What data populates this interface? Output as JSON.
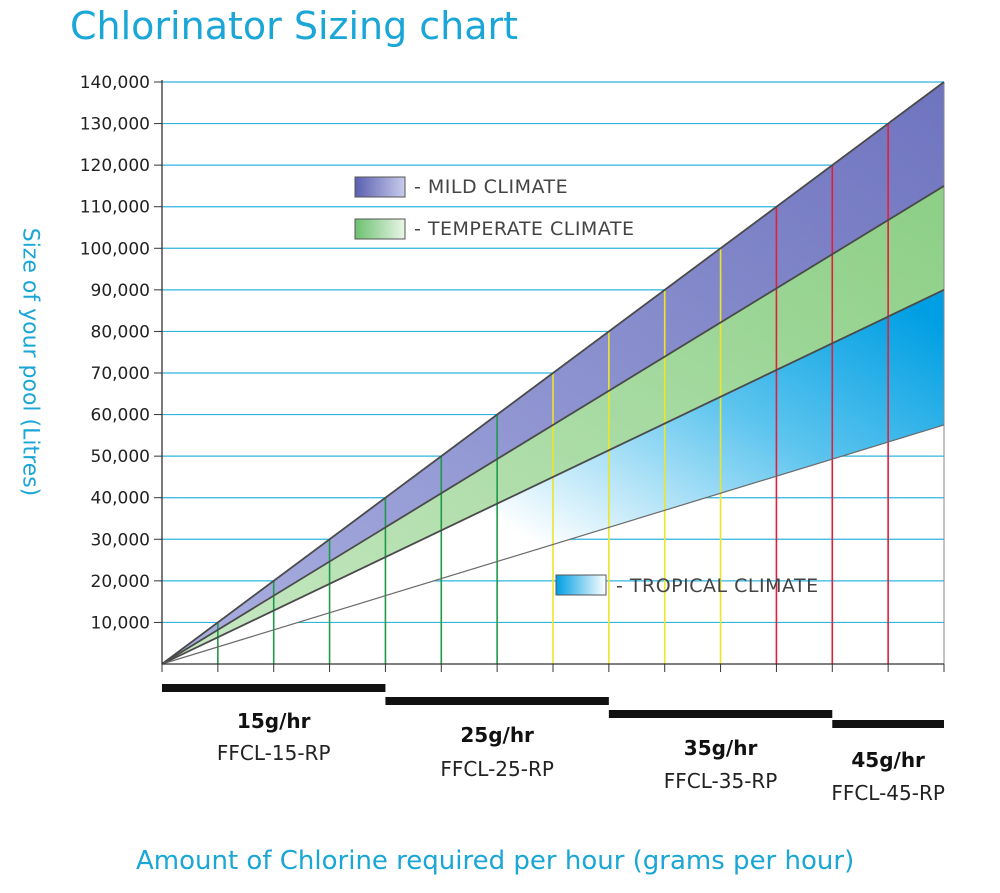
{
  "chart_data": {
    "type": "area",
    "title": "Chlorinator Sizing chart",
    "xlabel": "Amount of Chlorine required per hour (grams per hour)",
    "ylabel": "Size of your pool (Litres)",
    "ylim": [
      0,
      140000
    ],
    "yticks": [
      {
        "value": 10000,
        "label": "10,000"
      },
      {
        "value": 20000,
        "label": "20,000"
      },
      {
        "value": 30000,
        "label": "30,000"
      },
      {
        "value": 40000,
        "label": "40,000"
      },
      {
        "value": 50000,
        "label": "50,000"
      },
      {
        "value": 60000,
        "label": "60,000"
      },
      {
        "value": 70000,
        "label": "70,000"
      },
      {
        "value": 80000,
        "label": "80,000"
      },
      {
        "value": 90000,
        "label": "90,000"
      },
      {
        "value": 100000,
        "label": "100,000"
      },
      {
        "value": 110000,
        "label": "110,000"
      },
      {
        "value": 120000,
        "label": "120,000"
      },
      {
        "value": 130000,
        "label": "130,000"
      },
      {
        "value": 140000,
        "label": "140,000"
      }
    ],
    "x_steps": 14,
    "series": [
      {
        "name": "- MILD CLIMATE",
        "start": 0,
        "end": 140000,
        "color": "#7e84c8"
      },
      {
        "name": "- TEMPERATE CLIMATE",
        "start": 0,
        "end": 115000,
        "color": "#a6d8a0"
      },
      {
        "name": "- TROPICAL CLIMATE",
        "start": 0,
        "end": 90000,
        "color": "#0aa3e3"
      }
    ],
    "tropical_lower_end": 57500,
    "vertical_lines": [
      {
        "step": 1,
        "top": 10000,
        "color": "#1e9a4a"
      },
      {
        "step": 2,
        "top": 20000,
        "color": "#1e9a4a"
      },
      {
        "step": 3,
        "top": 30000,
        "color": "#1e9a4a"
      },
      {
        "step": 4,
        "top": 40000,
        "color": "#1e9a4a"
      },
      {
        "step": 5,
        "top": 50000,
        "color": "#1e9a4a"
      },
      {
        "step": 6,
        "top": 60000,
        "color": "#1e9a4a"
      },
      {
        "step": 7,
        "top": 70000,
        "color": "#ece52b"
      },
      {
        "step": 8,
        "top": 80000,
        "color": "#ece52b"
      },
      {
        "step": 9,
        "top": 90000,
        "color": "#ece52b"
      },
      {
        "step": 10,
        "top": 100000,
        "color": "#ece52b"
      },
      {
        "step": 11,
        "top": 110000,
        "color": "#e0203a"
      },
      {
        "step": 12,
        "top": 120000,
        "color": "#e0203a"
      },
      {
        "step": 13,
        "top": 130000,
        "color": "#e0203a"
      }
    ],
    "bands": [
      {
        "rate": "15g/hr",
        "model": "FFCL-15-RP",
        "from_step": 0,
        "to_step": 4,
        "level": 0
      },
      {
        "rate": "25g/hr",
        "model": "FFCL-25-RP",
        "from_step": 4,
        "to_step": 8,
        "level": 1
      },
      {
        "rate": "35g/hr",
        "model": "FFCL-35-RP",
        "from_step": 8,
        "to_step": 12,
        "level": 2
      },
      {
        "rate": "45g/hr",
        "model": "FFCL-45-RP",
        "from_step": 12,
        "to_step": 14,
        "level": 3
      }
    ],
    "grid": true,
    "gridline_color": "#2fb5e0",
    "legend_position": "in-plot"
  }
}
